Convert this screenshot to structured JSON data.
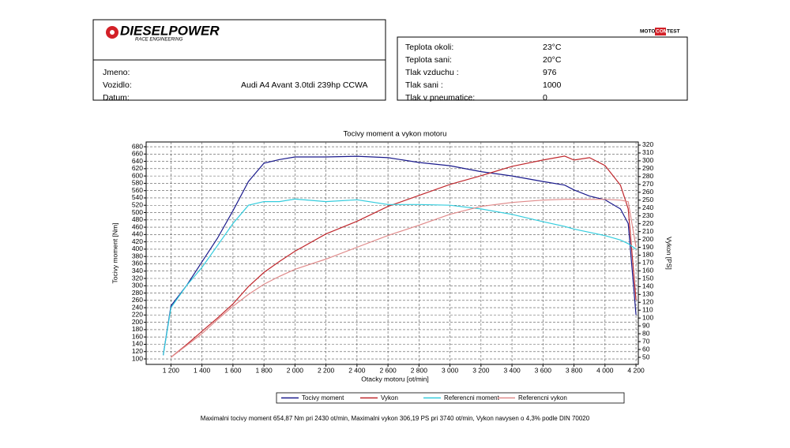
{
  "header": {
    "logo": "DIESELPOWER",
    "logo_sub": "RACE ENGINEERING",
    "badge": [
      "MOTO",
      "COM",
      "TEST"
    ],
    "fields": [
      {
        "label": "Jmeno:",
        "value": null
      },
      {
        "label": "Vozidlo:",
        "value": "Audi A4 Avant 3.0tdi 239hp CCWA"
      },
      {
        "label": "Datum:",
        "value": null
      }
    ],
    "conditions": [
      {
        "label": "Teplota okoli:",
        "value": "23°C"
      },
      {
        "label": "Teplota sani:",
        "value": "20°C"
      },
      {
        "label": "Tlak vzduchu :",
        "value": "976"
      },
      {
        "label": "Tlak sani :",
        "value": "1000"
      },
      {
        "label": "Tlak v pneumatice:",
        "value": "0"
      }
    ]
  },
  "chart_data": {
    "type": "line",
    "title": "Tocivy moment a vykon motoru",
    "x_label": "Otacky motoru [ot/min]",
    "y_label": "Tocivy moment [Nm]",
    "y2_label": "Vykon [PS]",
    "x": [
      1150,
      1200,
      1300,
      1400,
      1500,
      1600,
      1700,
      1800,
      1900,
      2000,
      2200,
      2400,
      2600,
      2800,
      3000,
      3200,
      3400,
      3600,
      3740,
      3800,
      3900,
      4000,
      4100,
      4150,
      4200
    ],
    "series": [
      {
        "name": "Tocivy moment",
        "color": "#1a1a8c",
        "values": [
          110,
          245,
          300,
          365,
          430,
          505,
          585,
          635,
          645,
          652,
          652,
          654,
          650,
          637,
          628,
          612,
          600,
          585,
          575,
          562,
          545,
          535,
          510,
          470,
          220
        ]
      },
      {
        "name": "Vykon",
        "color": "#c0282d",
        "axis": "y2",
        "values": [
          null,
          50,
          66,
          83,
          100,
          118,
          140,
          158,
          172,
          185,
          207,
          223,
          242,
          256,
          270,
          281,
          293,
          301,
          306,
          301,
          304,
          294,
          269,
          239,
          123
        ]
      },
      {
        "name": "Referencni moment",
        "color": "#33ccdd",
        "values": [
          110,
          240,
          300,
          350,
          410,
          470,
          520,
          530,
          530,
          537,
          530,
          535,
          522,
          522,
          520,
          510,
          495,
          475,
          462,
          455,
          446,
          437,
          425,
          415,
          400
        ]
      },
      {
        "name": "Referencni vykon",
        "color": "#e08a8a",
        "axis": "y2",
        "values": [
          null,
          50,
          65,
          80,
          98,
          115,
          130,
          143,
          153,
          162,
          175,
          190,
          205,
          218,
          232,
          242,
          247,
          250,
          251,
          251,
          251,
          251,
          250,
          248,
          190
        ]
      }
    ],
    "xlim": [
      1040,
      4215
    ],
    "xticks": [
      {
        "value": 1200,
        "label": "1 200"
      },
      {
        "value": 1400,
        "label": "1 400"
      },
      {
        "value": 1600,
        "label": "1 600"
      },
      {
        "value": 1800,
        "label": "1 800"
      },
      {
        "value": 2000,
        "label": "2 000"
      },
      {
        "value": 2200,
        "label": "2 200"
      },
      {
        "value": 2400,
        "label": "2 400"
      },
      {
        "value": 2600,
        "label": "2 600"
      },
      {
        "value": 2800,
        "label": "2 800"
      },
      {
        "value": 3000,
        "label": "3 000"
      },
      {
        "value": 3200,
        "label": "3 200"
      },
      {
        "value": 3400,
        "label": "3 400"
      },
      {
        "value": 3600,
        "label": "3 600"
      },
      {
        "value": 3800,
        "label": "3 800"
      },
      {
        "value": 4000,
        "label": "4 000"
      },
      {
        "value": 4200,
        "label": "4 200"
      }
    ],
    "ylim": [
      85,
      693
    ],
    "yticks": [
      100,
      120,
      140,
      160,
      180,
      200,
      220,
      240,
      260,
      280,
      300,
      320,
      340,
      360,
      380,
      400,
      420,
      440,
      460,
      480,
      500,
      520,
      540,
      560,
      580,
      600,
      620,
      640,
      660,
      680
    ],
    "y2lim": [
      41,
      324
    ],
    "y2ticks": [
      50,
      60,
      70,
      80,
      90,
      100,
      110,
      120,
      130,
      140,
      150,
      160,
      170,
      180,
      190,
      200,
      210,
      220,
      230,
      240,
      250,
      260,
      270,
      280,
      290,
      300,
      310,
      320
    ],
    "grid": true,
    "legend": "bottom",
    "footer": "Maximalni tocivy moment 654,87 Nm pri 2430 ot/min,  Maximalni vykon 306,19 PS pri 3740 ot/min,  Vykon navysen o 4,3% podle DIN 70020"
  }
}
